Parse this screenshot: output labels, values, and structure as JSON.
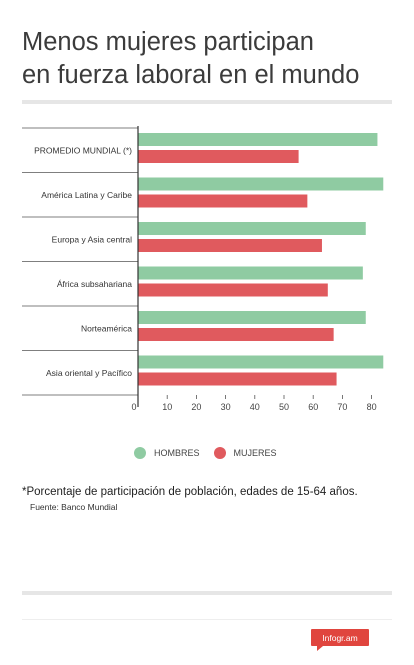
{
  "title_lines": [
    "Menos mujeres participan",
    "en fuerza laboral en el mundo"
  ],
  "colors": {
    "hombres": "#8fcba2",
    "mujeres": "#e05a5e",
    "axis": "#333333",
    "rule": "#e6e6e6"
  },
  "chart_data": {
    "type": "bar",
    "orientation": "horizontal",
    "title": "Menos mujeres participan en fuerza laboral en el mundo",
    "categories": [
      "PROMEDIO MUNDIAL (*)",
      "América Latina y Caribe",
      "Europa y Asia central",
      "África subsahariana",
      "Norteamérica",
      "Asia oriental y Pacífico"
    ],
    "series": [
      {
        "name": "HOMBRES",
        "values": [
          82,
          84,
          78,
          77,
          78,
          84
        ]
      },
      {
        "name": "MUJERES",
        "values": [
          55,
          58,
          63,
          65,
          67,
          68
        ]
      }
    ],
    "x_ticks": [
      0,
      10,
      20,
      30,
      40,
      50,
      60,
      70,
      80
    ],
    "xlim": [
      0,
      85
    ],
    "grid": false,
    "legend_position": "bottom"
  },
  "legend": {
    "hombres": "HOMBRES",
    "mujeres": "MUJERES"
  },
  "note": "*Porcentaje de participación de población, edades de 15-64 años.",
  "source": "Fuente: Banco Mundial",
  "logo_text": "Infogr.am"
}
